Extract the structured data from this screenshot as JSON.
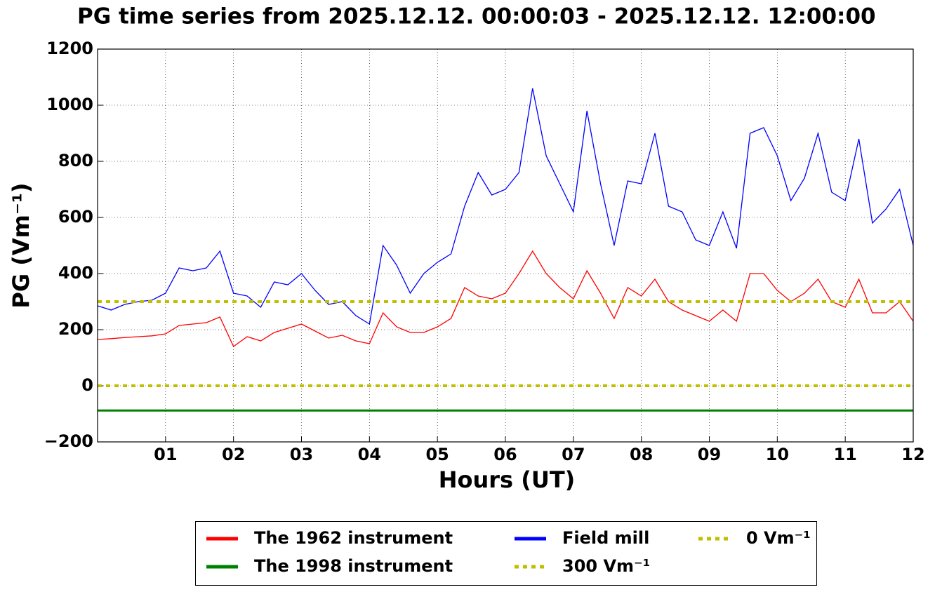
{
  "chart_data": {
    "type": "line",
    "title": "PG time series from 2025.12.12. 00:00:03 - 2025.12.12. 12:00:00",
    "x_label": "Hours (UT)",
    "y_label": "PG (Vm⁻¹)",
    "xlim": [
      0,
      12
    ],
    "ylim": [
      -200,
      1200
    ],
    "xticks": [
      {
        "value": 1,
        "label": "01"
      },
      {
        "value": 2,
        "label": "02"
      },
      {
        "value": 3,
        "label": "03"
      },
      {
        "value": 4,
        "label": "04"
      },
      {
        "value": 5,
        "label": "05"
      },
      {
        "value": 6,
        "label": "06"
      },
      {
        "value": 7,
        "label": "07"
      },
      {
        "value": 8,
        "label": "08"
      },
      {
        "value": 9,
        "label": "09"
      },
      {
        "value": 10,
        "label": "10"
      },
      {
        "value": 11,
        "label": "11"
      },
      {
        "value": 12,
        "label": "12"
      }
    ],
    "yticks": [
      {
        "value": -200,
        "label": "−200"
      },
      0,
      200,
      400,
      600,
      800,
      1000,
      1200
    ],
    "grid": true,
    "x": [
      0,
      0.2,
      0.4,
      0.6,
      0.8,
      1,
      1.2,
      1.4,
      1.6,
      1.8,
      2,
      2.2,
      2.4,
      2.6,
      2.8,
      3,
      3.2,
      3.4,
      3.6,
      3.8,
      4,
      4.2,
      4.4,
      4.6,
      4.8,
      5,
      5.2,
      5.4,
      5.6,
      5.8,
      6,
      6.2,
      6.4,
      6.6,
      6.8,
      7,
      7.2,
      7.4,
      7.6,
      7.8,
      8,
      8.2,
      8.4,
      8.6,
      8.8,
      9,
      9.2,
      9.4,
      9.6,
      9.8,
      10,
      10.2,
      10.4,
      10.6,
      10.8,
      11,
      11.2,
      11.4,
      11.6,
      11.8,
      12
    ],
    "series": [
      {
        "name": "The 1962 instrument",
        "color": "#ff0000",
        "values": [
          165,
          168,
          172,
          175,
          178,
          185,
          215,
          220,
          225,
          245,
          140,
          175,
          160,
          190,
          205,
          220,
          195,
          170,
          180,
          160,
          150,
          260,
          210,
          190,
          190,
          210,
          240,
          350,
          320,
          310,
          330,
          400,
          480,
          400,
          350,
          310,
          410,
          330,
          240,
          350,
          320,
          380,
          300,
          270,
          250,
          230,
          270,
          230,
          400,
          400,
          340,
          300,
          330,
          380,
          300,
          280,
          380,
          260,
          260,
          300,
          230
        ]
      },
      {
        "name": "The 1998 instrument",
        "color": "#008000",
        "values": [
          -88,
          -88,
          -88,
          -88,
          -88,
          -88,
          -88,
          -88,
          -88,
          -88,
          -88,
          -88,
          -88,
          -88,
          -88,
          -88,
          -88,
          -88,
          -88,
          -88,
          -88,
          -88,
          -88,
          -88,
          -88,
          -88,
          -88,
          -88,
          -88,
          -88,
          -88,
          -88,
          -88,
          -88,
          -88,
          -88,
          -88,
          -88,
          -88,
          -88,
          -88,
          -88,
          -88,
          -88,
          -88,
          -88,
          -88,
          -88,
          -88,
          -88,
          -88,
          -88,
          -88,
          -88,
          -88,
          -88,
          -88,
          -88,
          -88,
          -88,
          -88
        ]
      },
      {
        "name": "Field mill",
        "color": "#0000ff",
        "values": [
          285,
          270,
          290,
          300,
          305,
          330,
          420,
          410,
          420,
          480,
          330,
          320,
          280,
          370,
          360,
          400,
          340,
          290,
          300,
          250,
          220,
          500,
          430,
          330,
          400,
          440,
          470,
          640,
          760,
          680,
          700,
          760,
          1060,
          820,
          720,
          620,
          980,
          720,
          500,
          730,
          720,
          900,
          640,
          620,
          520,
          500,
          620,
          490,
          900,
          920,
          820,
          660,
          740,
          900,
          690,
          660,
          880,
          580,
          630,
          700,
          500
        ]
      }
    ],
    "hlines": [
      {
        "name": "300 Vm⁻¹",
        "value": 300,
        "color": "#bfbf00"
      },
      {
        "name": "0 Vm⁻¹",
        "value": 0,
        "color": "#bfbf00"
      }
    ]
  }
}
